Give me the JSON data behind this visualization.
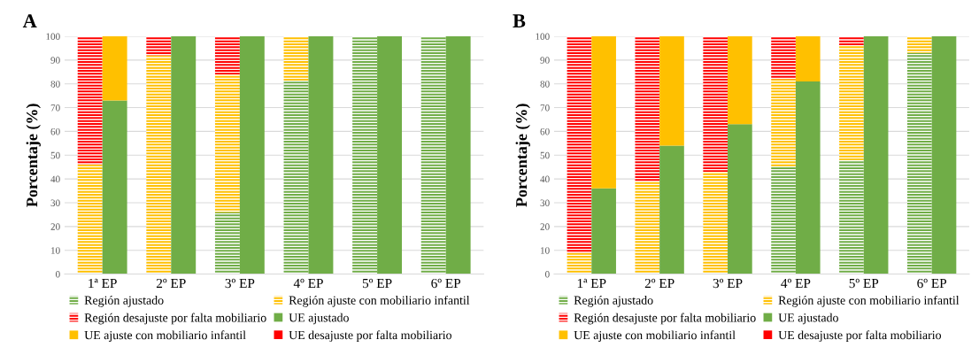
{
  "chart_data": [
    {
      "type": "bar",
      "title": "A",
      "ylabel": "Porcentaje (%)",
      "categories": [
        "1ª EP",
        "2º EP",
        "3º EP",
        "4º EP",
        "5º EP",
        "6º EP"
      ],
      "ylim": [
        0,
        100
      ],
      "yticks": [
        0,
        10,
        20,
        30,
        40,
        50,
        60,
        70,
        80,
        90,
        100
      ],
      "grid": "y",
      "legend": "bottom",
      "series": [
        {
          "name": "Región ajustado",
          "color": "#70ad47",
          "base": [
            null,
            null,
            0,
            0,
            0,
            0
          ],
          "values": [
            null,
            null,
            26,
            81,
            100,
            100
          ]
        },
        {
          "name": "Región ajuste con mobiliario infantil",
          "color": "#ffc000",
          "base": [
            0,
            0,
            26,
            81,
            null,
            null
          ],
          "values": [
            46,
            92,
            58,
            19,
            null,
            null
          ]
        },
        {
          "name": "Región desajuste por falta mobiliario",
          "color": "#ff0000",
          "base": [
            46,
            92,
            84,
            null,
            null,
            null
          ],
          "values": [
            54,
            8,
            16,
            null,
            null,
            null
          ]
        },
        {
          "name": "UE ajustado",
          "color": "#70ad47",
          "base": [
            0,
            0,
            0,
            0,
            0,
            0
          ],
          "values": [
            73,
            100,
            100,
            100,
            100,
            100
          ]
        },
        {
          "name": "UE ajuste con mobiliario infantil",
          "color": "#ffc000",
          "base": [
            73,
            null,
            null,
            null,
            null,
            null
          ],
          "values": [
            27,
            null,
            null,
            null,
            null,
            null
          ]
        },
        {
          "name": "UE desajuste por falta mobiliario",
          "color": "#ff0000",
          "base": [
            null,
            null,
            null,
            null,
            null,
            null
          ],
          "values": [
            null,
            null,
            null,
            null,
            null,
            null
          ]
        }
      ]
    },
    {
      "type": "bar",
      "title": "B",
      "ylabel": "Porcentaje (%)",
      "categories": [
        "1ª EP",
        "2º EP",
        "3º EP",
        "4º EP",
        "5º EP",
        "6º EP"
      ],
      "ylim": [
        0,
        100
      ],
      "yticks": [
        0,
        10,
        20,
        30,
        40,
        50,
        60,
        70,
        80,
        90,
        100
      ],
      "grid": "y",
      "legend": "bottom",
      "series": [
        {
          "name": "Región ajustado",
          "color": "#70ad47",
          "base": [
            null,
            null,
            null,
            0,
            0,
            0
          ],
          "values": [
            null,
            null,
            null,
            45,
            48,
            93
          ]
        },
        {
          "name": "Región ajuste con mobiliario infantil",
          "color": "#ffc000",
          "base": [
            0,
            0,
            0,
            45,
            48,
            93
          ],
          "values": [
            9,
            39,
            43,
            37,
            48,
            7
          ]
        },
        {
          "name": "Región desajuste por falta mobiliario",
          "color": "#ff0000",
          "base": [
            9,
            39,
            43,
            82,
            96,
            null
          ],
          "values": [
            91,
            61,
            57,
            18,
            4,
            null
          ]
        },
        {
          "name": "UE ajustado",
          "color": "#70ad47",
          "base": [
            0,
            0,
            0,
            0,
            0,
            0
          ],
          "values": [
            36,
            54,
            63,
            81,
            100,
            100
          ]
        },
        {
          "name": "UE ajuste con mobiliario infantil",
          "color": "#ffc000",
          "base": [
            36,
            54,
            63,
            81,
            null,
            null
          ],
          "values": [
            64,
            46,
            37,
            19,
            null,
            null
          ]
        },
        {
          "name": "UE desajuste por falta mobiliario",
          "color": "#ff0000",
          "base": [
            null,
            null,
            null,
            null,
            null,
            null
          ],
          "values": [
            null,
            null,
            null,
            null,
            null,
            null
          ]
        }
      ]
    }
  ]
}
